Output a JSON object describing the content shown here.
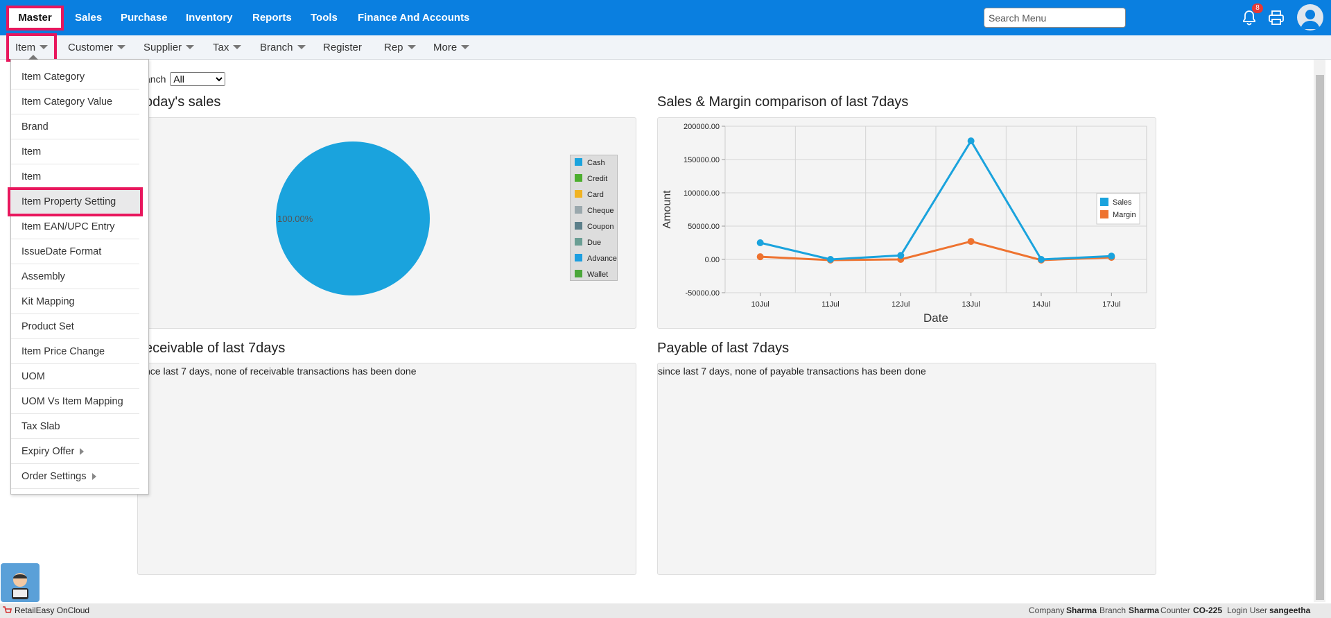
{
  "topnav": {
    "tabs": [
      "Master",
      "Sales",
      "Purchase",
      "Inventory",
      "Reports",
      "Tools",
      "Finance And Accounts"
    ],
    "search_placeholder": "Search Menu",
    "notif_count": "8"
  },
  "subnav": {
    "items": [
      "Item",
      "Customer",
      "Supplier",
      "Tax",
      "Branch",
      "Register",
      "Rep",
      "More"
    ]
  },
  "dropdown": {
    "items": [
      "Item Category",
      "Item Category Value",
      "Brand",
      "Item",
      "Item",
      "Item Property Setting",
      "Item EAN/UPC Entry",
      "IssueDate Format",
      "Assembly",
      "Kit Mapping",
      "Product Set",
      "Item Price Change",
      "UOM",
      "UOM Vs Item Mapping",
      "Tax Slab",
      "Expiry Offer",
      "Order Settings"
    ]
  },
  "branch": {
    "label": "anch",
    "value": "All"
  },
  "panels": {
    "today_title": "oday's sales",
    "comparison_title": "Sales & Margin comparison of last 7days",
    "receivable_title": "eceivable of last 7days",
    "receivable_text": "nce last 7 days, none of receivable transactions has been done",
    "payable_title": "Payable of last 7days",
    "payable_text": "since last 7 days, none of payable transactions has been done"
  },
  "chart_data": [
    {
      "type": "pie",
      "title": "oday's sales",
      "categories": [
        "Cash",
        "Credit",
        "Card",
        "Cheque",
        "Coupon",
        "Due",
        "Advance",
        "Wallet"
      ],
      "values": [
        100,
        0,
        0,
        0,
        0,
        0,
        0,
        0
      ],
      "slice_label": "100.00%",
      "colors": [
        "#1aa3dd",
        "#4cae2e",
        "#f0b323",
        "#9aa8ad",
        "#5c7f8a",
        "#6a9e94",
        "#1d9ee0",
        "#4ba73a"
      ]
    },
    {
      "type": "line",
      "title": "Sales & Margin comparison of last 7days",
      "categories": [
        "10Jul",
        "11Jul",
        "12Jul",
        "13Jul",
        "14Jul",
        "17Jul"
      ],
      "series": [
        {
          "name": "Sales",
          "values": [
            25000,
            0,
            6000,
            178000,
            0,
            5000
          ],
          "color": "#1aa3dd"
        },
        {
          "name": "Margin",
          "values": [
            4000,
            -1000,
            0,
            27000,
            -1000,
            3000
          ],
          "color": "#ee7330"
        }
      ],
      "ylim": [
        -50000,
        200000
      ],
      "yticks": [
        "200000.00",
        "150000.00",
        "100000.00",
        "50000.00",
        "0.00",
        "-50000.00"
      ],
      "xlabel": "Date",
      "ylabel": "Amount"
    }
  ],
  "footer": {
    "app": "RetailEasy OnCloud",
    "company_label": "Company",
    "company": "Sharma",
    "branch_label": "Branch",
    "branch": "Sharma",
    "counter_label": "Counter",
    "counter": "CO-225",
    "user_label": "Login User",
    "user": "sangeetha"
  }
}
